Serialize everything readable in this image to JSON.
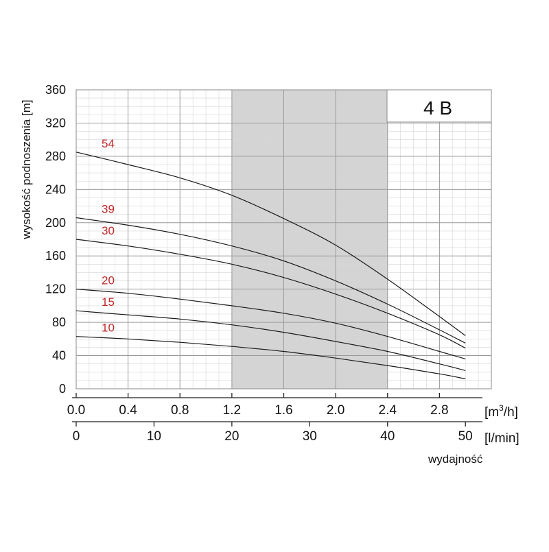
{
  "chart_data": {
    "type": "line",
    "title": "4 B",
    "ylabel": "wysokość podnoszenia [m]",
    "xlabel": "wydajność",
    "x_unit_primary_base": "[m",
    "x_unit_primary_sup": "3",
    "x_unit_primary_tail": "/h]",
    "x_unit_secondary": "[l/min]",
    "xlim": [
      0,
      3.2
    ],
    "ylim": [
      0,
      360
    ],
    "x_ticks": [
      "0.0",
      "0.4",
      "0.8",
      "1.2",
      "1.6",
      "2.0",
      "2.4",
      "2.8"
    ],
    "x_tick_values": [
      0,
      0.4,
      0.8,
      1.2,
      1.6,
      2.0,
      2.4,
      2.8
    ],
    "x2_ticks": [
      "0",
      "10",
      "20",
      "30",
      "40",
      "50"
    ],
    "x2_tick_values": [
      0,
      10,
      20,
      30,
      40,
      50
    ],
    "y_ticks": [
      "0",
      "40",
      "80",
      "120",
      "160",
      "200",
      "240",
      "280",
      "320",
      "360"
    ],
    "y_tick_values": [
      0,
      40,
      80,
      120,
      160,
      200,
      240,
      280,
      320,
      360
    ],
    "grid": true,
    "shaded_range_x": [
      1.2,
      2.4
    ],
    "series": [
      {
        "name": "54",
        "x": [
          0,
          0.4,
          0.8,
          1.2,
          1.6,
          2.0,
          2.4,
          2.8,
          3.0
        ],
        "y": [
          285,
          270,
          254,
          233,
          205,
          173,
          132,
          87,
          64
        ]
      },
      {
        "name": "39",
        "x": [
          0,
          0.4,
          0.8,
          1.2,
          1.6,
          2.0,
          2.4,
          2.8,
          3.0
        ],
        "y": [
          206,
          197,
          186,
          172,
          154,
          130,
          102,
          71,
          55
        ]
      },
      {
        "name": "30",
        "x": [
          0,
          0.4,
          0.8,
          1.2,
          1.6,
          2.0,
          2.4,
          2.8,
          3.0
        ],
        "y": [
          180,
          172,
          162,
          150,
          134,
          114,
          91,
          65,
          49
        ]
      },
      {
        "name": "20",
        "x": [
          0,
          0.4,
          0.8,
          1.2,
          1.6,
          2.0,
          2.4,
          2.8,
          3.0
        ],
        "y": [
          120,
          115,
          108,
          100,
          91,
          79,
          63,
          45,
          36
        ]
      },
      {
        "name": "15",
        "x": [
          0,
          0.4,
          0.8,
          1.2,
          1.6,
          2.0,
          2.4,
          2.8,
          3.0
        ],
        "y": [
          94,
          89,
          84,
          77,
          68,
          57,
          45,
          30,
          22
        ]
      },
      {
        "name": "10",
        "x": [
          0,
          0.4,
          0.8,
          1.2,
          1.6,
          2.0,
          2.4,
          2.8,
          3.0
        ],
        "y": [
          63,
          60,
          56,
          51,
          45,
          37,
          28,
          18,
          12
        ]
      }
    ],
    "colors": {
      "curve": "#1a1a1a",
      "series_label": "#c0282a",
      "grid_major": "#9a9a9a",
      "grid_minor": "#d6d6d6",
      "shade": "#d4d4d4",
      "axis": "#222222",
      "text": "#111111"
    }
  }
}
